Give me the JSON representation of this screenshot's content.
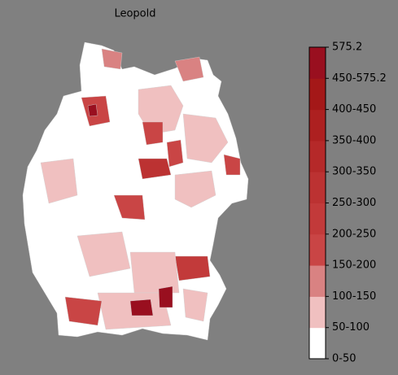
{
  "title": "Leopold",
  "colorbar": {
    "labels": [
      "0-50",
      "50-100",
      "100-150",
      "150-200",
      "200-250",
      "250-300",
      "300-350",
      "350-400",
      "400-450",
      "450-575.2",
      "575.2"
    ],
    "colors": [
      "#ffffff",
      "#f0c0c0",
      "#d98282",
      "#c94545",
      "#c23a3a",
      "#bc3232",
      "#b52929",
      "#ad2020",
      "#a41818",
      "#990f1f"
    ]
  }
}
